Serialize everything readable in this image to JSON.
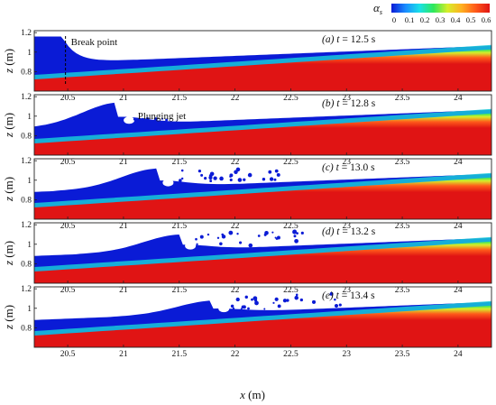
{
  "figure": {
    "x_axis_label": "x",
    "x_axis_unit": "(m)",
    "y_axis_label": "z",
    "y_axis_unit": "(m)",
    "colorbar": {
      "label": "α",
      "label_sub": "s",
      "ticks": [
        "0",
        "0.1",
        "0.2",
        "0.3",
        "0.4",
        "0.5",
        "0.6"
      ],
      "colors": [
        "#0a1bd6",
        "#1a8cff",
        "#19e0e8",
        "#2ee85a",
        "#d6ee2a",
        "#ffb020",
        "#ff5a1a",
        "#e01414"
      ]
    },
    "xlim": [
      20.2,
      24.3
    ],
    "ylim": [
      0.6,
      1.22
    ],
    "x_ticks": [
      "20.5",
      "21",
      "21.5",
      "22",
      "22.5",
      "23",
      "23.5",
      "24"
    ],
    "y_ticks": [
      "0.8",
      "1",
      "1.2"
    ],
    "panels": [
      {
        "label": "(a) t = 12.5 s",
        "label_prefix": "(a) ",
        "time": "12.5",
        "annotation": "Break point",
        "wave_type": "break",
        "crest_x": 20.45,
        "crest_z": 1.16
      },
      {
        "label": "(b) t = 12.8 s",
        "label_prefix": "(b) ",
        "time": "12.8",
        "annotation": "Plunging jet",
        "wave_type": "plunge",
        "crest_x": 20.95,
        "crest_z": 1.14
      },
      {
        "label": "(c) t = 13.0 s",
        "label_prefix": "(c) ",
        "time": "13.0",
        "annotation": "",
        "wave_type": "splash",
        "crest_x": 21.3,
        "crest_z": 1.12
      },
      {
        "label": "(d) t = 13.2 s",
        "label_prefix": "(d) ",
        "time": "13.2",
        "annotation": "",
        "wave_type": "splash",
        "crest_x": 21.5,
        "crest_z": 1.1
      },
      {
        "label": "(e) t = 13.4 s",
        "label_prefix": "(e) ",
        "time": "13.4",
        "annotation": "",
        "wave_type": "splash",
        "crest_x": 21.8,
        "crest_z": 1.08
      }
    ]
  },
  "chart_data": {
    "type": "heatmap",
    "title": "",
    "xlabel": "x (m)",
    "ylabel": "z (m)",
    "xlim": [
      20.2,
      24.3
    ],
    "ylim": [
      0.6,
      1.22
    ],
    "colorbar_label": "α_s",
    "colorbar_range": [
      0,
      0.6
    ],
    "panels": [
      "(a) t = 12.5 s",
      "(b) t = 12.8 s",
      "(c) t = 13.0 s",
      "(d) t = 13.2 s",
      "(e) t = 13.4 s"
    ],
    "annotations": [
      "Break point",
      "Plunging jet"
    ]
  }
}
